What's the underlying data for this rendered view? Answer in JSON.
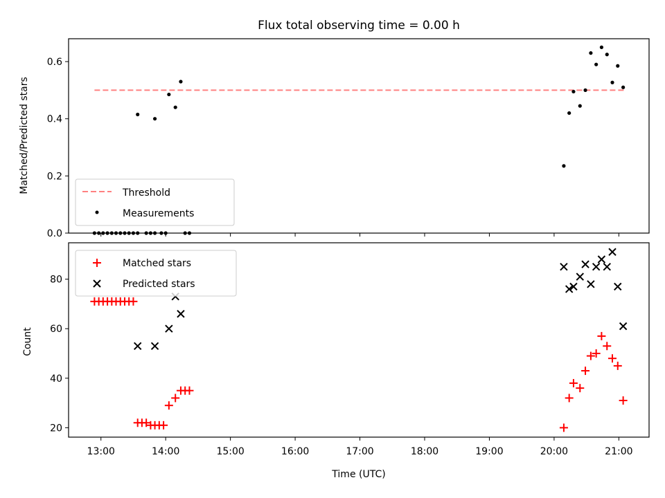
{
  "chart_data": [
    {
      "type": "scatter",
      "title": "Flux total observing time = 0.00 h",
      "ylabel": "Matched/Predicted stars",
      "ylim": [
        0,
        0.68
      ],
      "yticks": [
        0.0,
        0.2,
        0.4,
        0.6
      ],
      "ytick_labels": [
        "0.0",
        "0.2",
        "0.4",
        "0.6"
      ],
      "xlim": [
        12.5,
        21.467
      ],
      "legend_position": "lower-left",
      "series": [
        {
          "name": "Threshold",
          "kind": "line",
          "style": "dashed",
          "color": "#ff8080",
          "x": [
            12.9,
            21.1
          ],
          "y": [
            0.5,
            0.5
          ]
        },
        {
          "name": "Measurements",
          "kind": "scatter",
          "marker": "dot",
          "color": "#000000",
          "x": [
            12.9,
            12.967,
            13.033,
            13.1,
            13.167,
            13.233,
            13.3,
            13.367,
            13.433,
            13.5,
            13.567,
            13.7,
            13.767,
            13.833,
            13.933,
            14.0,
            14.3,
            14.367,
            13.567,
            13.833,
            14.05,
            14.15,
            14.233,
            20.15,
            20.233,
            20.3,
            20.4,
            20.483,
            20.567,
            20.65,
            20.733,
            20.817,
            20.9,
            20.983,
            21.067
          ],
          "y": [
            0,
            0,
            0,
            0,
            0,
            0,
            0,
            0,
            0,
            0,
            0,
            0,
            0,
            0,
            0,
            0,
            0,
            0,
            0.415,
            0.4,
            0.485,
            0.44,
            0.53,
            0.235,
            0.42,
            0.495,
            0.445,
            0.5,
            0.63,
            0.59,
            0.65,
            0.625,
            0.527,
            0.585,
            0.51
          ]
        }
      ]
    },
    {
      "type": "scatter",
      "xlabel": "Time (UTC)",
      "ylabel": "Count",
      "ylim": [
        16.2,
        94.7
      ],
      "yticks": [
        20,
        40,
        60,
        80
      ],
      "ytick_labels": [
        "20",
        "40",
        "60",
        "80"
      ],
      "xlim": [
        12.5,
        21.467
      ],
      "xticks": [
        13,
        14,
        15,
        16,
        17,
        18,
        19,
        20,
        21
      ],
      "xtick_labels": [
        "13:00",
        "14:00",
        "15:00",
        "16:00",
        "17:00",
        "18:00",
        "19:00",
        "20:00",
        "21:00"
      ],
      "legend_position": "upper-left",
      "series": [
        {
          "name": "Matched stars",
          "marker": "plus",
          "color": "#ff0000",
          "x": [
            12.9,
            12.967,
            13.033,
            13.1,
            13.167,
            13.233,
            13.3,
            13.367,
            13.433,
            13.5,
            13.567,
            13.633,
            13.7,
            13.767,
            13.833,
            13.9,
            13.967,
            14.05,
            14.15,
            14.233,
            14.3,
            14.367,
            20.15,
            20.233,
            20.3,
            20.4,
            20.483,
            20.567,
            20.65,
            20.733,
            20.817,
            20.9,
            20.983,
            21.067
          ],
          "y": [
            71,
            71,
            71,
            71,
            71,
            71,
            71,
            71,
            71,
            71,
            22,
            22,
            22,
            21,
            21,
            21,
            21,
            29,
            32,
            35,
            35,
            35,
            20,
            32,
            38,
            36,
            43,
            49,
            50,
            57,
            53,
            48,
            45,
            31
          ]
        },
        {
          "name": "Predicted stars",
          "marker": "x",
          "color": "#000000",
          "x": [
            13.567,
            13.833,
            14.05,
            14.15,
            14.233,
            20.15,
            20.233,
            20.3,
            20.4,
            20.483,
            20.567,
            20.65,
            20.733,
            20.817,
            20.9,
            20.983,
            21.067
          ],
          "y": [
            53,
            53,
            60,
            73,
            66,
            85,
            76,
            77,
            81,
            86,
            78,
            85,
            88,
            85,
            91,
            77,
            61
          ]
        }
      ]
    }
  ]
}
